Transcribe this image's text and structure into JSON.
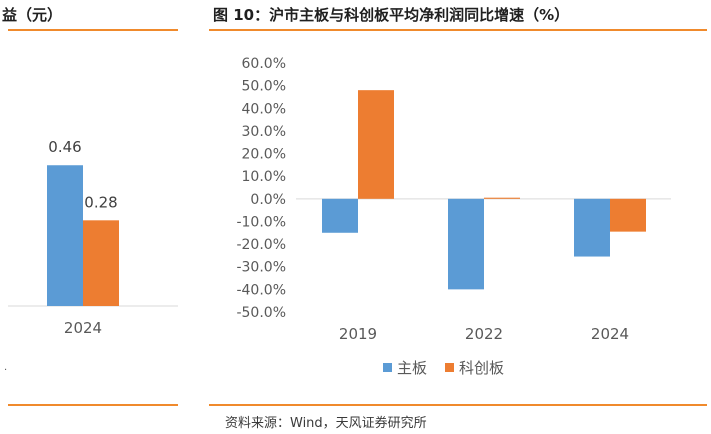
{
  "header": {
    "left_title": "益（元）",
    "right_title": "图 10：沪市主板与科创板平均净利润同比增速（%）"
  },
  "footer": {
    "source": "资料来源：Wind，天风证券研究所",
    "stray_mark": "."
  },
  "colors": {
    "main_board": "#5b9bd5",
    "star_market": "#ed7d31",
    "accent_line": "#f08a2c",
    "axis": "#d9d9d9"
  },
  "chart_data": [
    {
      "type": "bar",
      "title": "",
      "categories": [
        "2024"
      ],
      "series": [
        {
          "name": "主板",
          "values": [
            0.46
          ]
        },
        {
          "name": "科创板",
          "values": [
            0.28
          ]
        }
      ],
      "data_labels": [
        "0.46",
        "0.28"
      ],
      "ylim": [
        0,
        0.5
      ]
    },
    {
      "type": "bar",
      "title": "沪市主板与科创板平均净利润同比增速（%）",
      "categories": [
        "2019",
        "2022",
        "2024"
      ],
      "series": [
        {
          "name": "主板",
          "values": [
            -15.0,
            -40.0,
            -25.5
          ]
        },
        {
          "name": "科创板",
          "values": [
            48.0,
            0.5,
            -14.5
          ]
        }
      ],
      "ylim": [
        -50,
        60
      ],
      "yticks": [
        "60.0%",
        "50.0%",
        "40.0%",
        "30.0%",
        "20.0%",
        "10.0%",
        "0.0%",
        "-10.0%",
        "-20.0%",
        "-30.0%",
        "-40.0%",
        "-50.0%"
      ],
      "legend": [
        "主板",
        "科创板"
      ],
      "legend_position": "bottom"
    }
  ]
}
